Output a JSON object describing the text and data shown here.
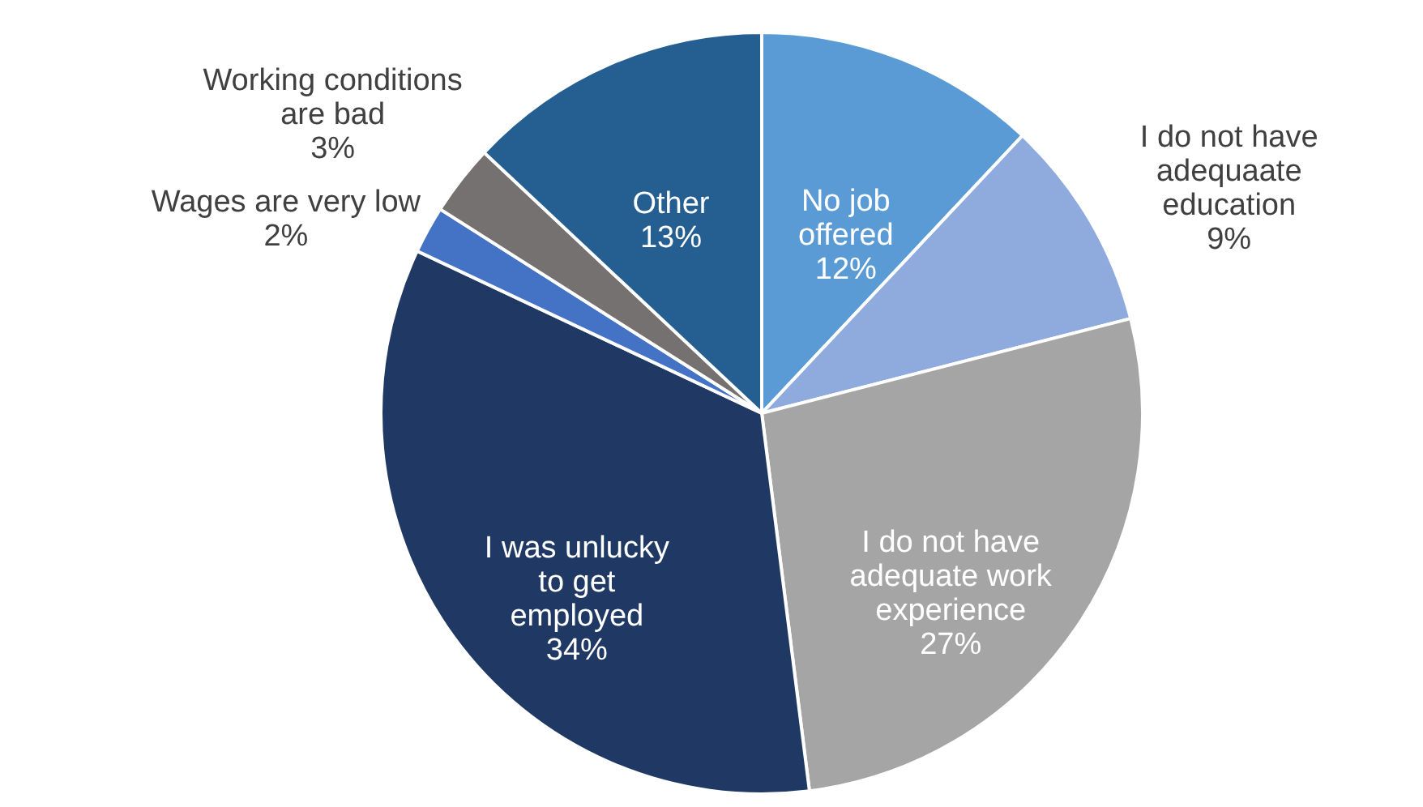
{
  "chart_data": {
    "type": "pie",
    "categories": [
      "No job offered",
      "I do not have adequaate education",
      "I do not have adequate work experience",
      "I was unlucky to get employed",
      "Wages are very low",
      "Working conditions are bad",
      "Other"
    ],
    "values": [
      12,
      9,
      27,
      34,
      2,
      3,
      13
    ],
    "value_labels": [
      "12%",
      "9%",
      "27%",
      "34%",
      "2%",
      "3%",
      "13%"
    ],
    "colors": [
      "#5b9bd5",
      "#8faadc",
      "#a5a5a5",
      "#203864",
      "#4472c4",
      "#767171",
      "#255e91"
    ]
  }
}
